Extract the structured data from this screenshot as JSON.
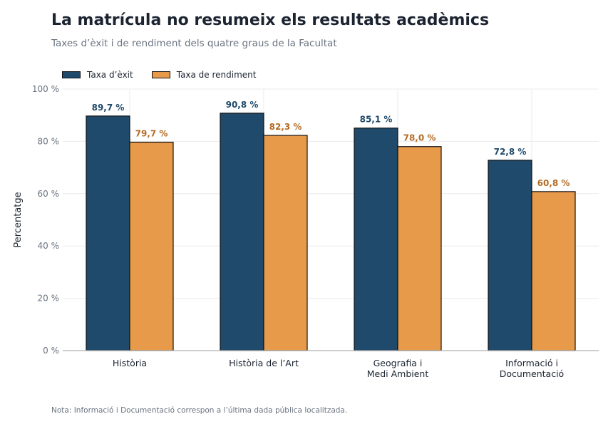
{
  "title": "La matrícula no resumeix els resultats acadèmics",
  "subtitle": "Taxes d’èxit i de rendiment dels quatre graus de la Facultat",
  "note": "Nota: Informació i Documentació correspon a l’última dada pública localitzada.",
  "colors": {
    "series_1": "#1f4a6b",
    "series_2": "#e89a4b",
    "label_1": "#1f4a6b",
    "label_2": "#b36b23",
    "grid": "#ebebeb",
    "axis": "#b0b0b0"
  },
  "chart_data": {
    "type": "bar",
    "categories": [
      [
        "Història"
      ],
      [
        "Història de l’Art"
      ],
      [
        "Geografia i",
        "Medi Ambient"
      ],
      [
        "Informació i",
        "Documentació"
      ]
    ],
    "series": [
      {
        "name": "Taxa d’èxit",
        "values": [
          89.7,
          90.8,
          85.1,
          72.8
        ],
        "labels": [
          "89,7 %",
          "90,8 %",
          "85,1 %",
          "72,8 %"
        ]
      },
      {
        "name": "Taxa de rendiment",
        "values": [
          79.7,
          82.3,
          78.0,
          60.8
        ],
        "labels": [
          "79,7 %",
          "82,3 %",
          "78,0 %",
          "60,8 %"
        ]
      }
    ],
    "ylabel": "Percentatge",
    "ylim": [
      0,
      100
    ],
    "yticks": [
      0,
      20,
      40,
      60,
      80,
      100
    ],
    "ytick_labels": [
      "0 %",
      "20 %",
      "40 %",
      "60 %",
      "80 %",
      "100 %"
    ],
    "grid": true,
    "legend_position": "top-left"
  }
}
